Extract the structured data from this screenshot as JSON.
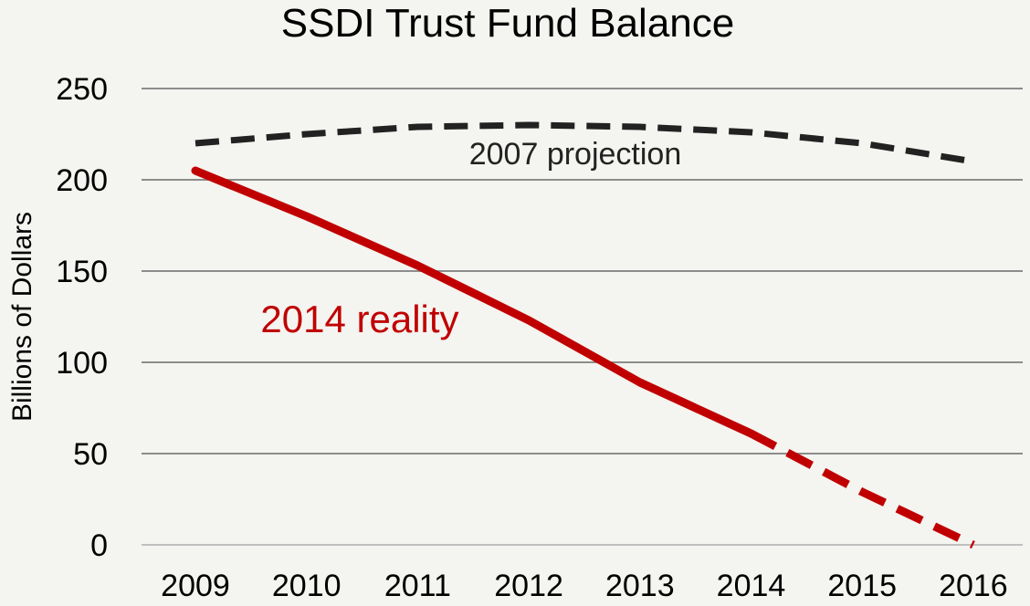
{
  "chart_data": {
    "type": "line",
    "title": "SSDI Trust Fund Balance",
    "ylabel": "Billions of Dollars",
    "xlabel": "",
    "ylim": [
      0,
      250
    ],
    "yticks": [
      "0",
      "50",
      "100",
      "150",
      "200",
      "250"
    ],
    "categories": [
      "2009",
      "2010",
      "2011",
      "2012",
      "2013",
      "2014",
      "2015",
      "2016"
    ],
    "grid": true,
    "series": [
      {
        "name": "2007 projection",
        "color": "#222222",
        "style": "dashed",
        "values": [
          220,
          225,
          229,
          230,
          229,
          226,
          220,
          210
        ]
      },
      {
        "name": "2014 reality",
        "color": "#c00000",
        "style": "solid-then-dashed",
        "values": [
          205,
          180,
          153,
          123,
          89,
          61,
          29,
          0
        ],
        "projected_from": "2014"
      }
    ]
  }
}
